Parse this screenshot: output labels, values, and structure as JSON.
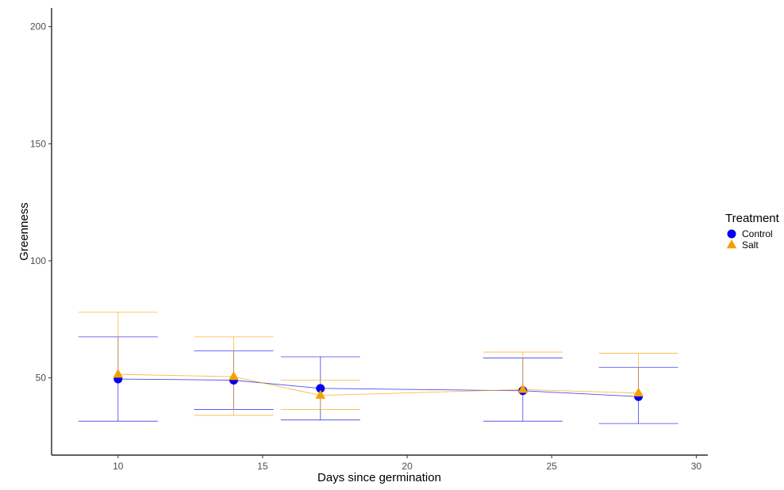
{
  "chart_data": {
    "type": "scatter",
    "xlabel": "Days since germination",
    "ylabel": "Greenness",
    "xlim": [
      7.7,
      30.4
    ],
    "ylim": [
      17,
      208
    ],
    "xticks": [
      "10",
      "15",
      "20",
      "25",
      "30"
    ],
    "yticks": [
      "50",
      "100",
      "150",
      "200"
    ],
    "grid": false,
    "legend": {
      "title": "Treatment",
      "position": "right"
    },
    "series": [
      {
        "name": "Control",
        "color": "#0000ee",
        "marker": "circle",
        "x": [
          10,
          14,
          17,
          24,
          28
        ],
        "y": [
          49.5,
          49,
          45.5,
          44.5,
          42
        ],
        "err_low": [
          31.5,
          36.5,
          32,
          31.5,
          30.5
        ],
        "err_high": [
          67.5,
          61.5,
          59,
          58.5,
          54.5
        ]
      },
      {
        "name": "Salt",
        "color": "#f5a000",
        "marker": "triangle",
        "x": [
          10,
          14,
          17,
          24,
          28
        ],
        "y": [
          51.5,
          50.5,
          42.5,
          45,
          43.5
        ],
        "err_low": [
          null,
          34,
          36.5,
          null,
          null
        ],
        "err_high": [
          78,
          67.5,
          49,
          61,
          60.5
        ]
      }
    ]
  }
}
